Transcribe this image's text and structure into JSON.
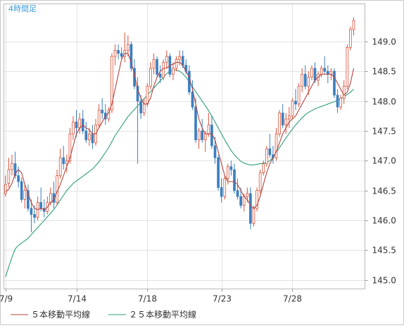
{
  "chart_data": {
    "type": "candlestick",
    "period_label": "4時間足",
    "x_tick_labels": [
      "7/9",
      "7/14",
      "7/18",
      "7/23",
      "7/28"
    ],
    "x_tick_index": [
      0,
      22,
      44,
      67,
      89
    ],
    "y_ticks": [
      145.0,
      145.5,
      146.0,
      146.5,
      147.0,
      147.5,
      148.0,
      148.5,
      149.0
    ],
    "y_tick_labels": [
      "145.0",
      "145.5",
      "146.0",
      "146.5",
      "147.0",
      "147.5",
      "148.0",
      "148.5",
      "149.0"
    ],
    "ylim": [
      144.85,
      149.63
    ],
    "xlim": [
      -0.5,
      111.5
    ],
    "legend": [
      {
        "label": "５本移動平均線",
        "color": "#b5453f"
      },
      {
        "label": "２５本移動平均線",
        "color": "#2f9e7e"
      }
    ],
    "colors": {
      "up": "#d9533a",
      "down": "#3a7fc1",
      "grid": "#e3e3e3",
      "frame": "#b9b9b9"
    },
    "candles": [
      [
        146.45,
        146.75,
        146.4,
        146.6
      ],
      [
        146.62,
        147.05,
        146.55,
        146.85
      ],
      [
        146.85,
        147.1,
        146.75,
        146.95
      ],
      [
        146.95,
        147.15,
        146.7,
        146.75
      ],
      [
        146.75,
        146.9,
        146.55,
        146.65
      ],
      [
        146.65,
        146.72,
        146.3,
        146.35
      ],
      [
        146.35,
        146.6,
        146.2,
        146.5
      ],
      [
        146.5,
        146.6,
        146.15,
        146.2
      ],
      [
        146.2,
        146.35,
        145.8,
        146.1
      ],
      [
        146.1,
        146.25,
        145.95,
        146.05
      ],
      [
        146.05,
        146.4,
        146.0,
        146.3
      ],
      [
        146.3,
        146.55,
        146.15,
        146.2
      ],
      [
        146.2,
        146.35,
        146.05,
        146.15
      ],
      [
        146.15,
        146.4,
        146.1,
        146.3
      ],
      [
        146.3,
        146.55,
        146.25,
        146.45
      ],
      [
        146.45,
        146.65,
        146.2,
        146.3
      ],
      [
        146.3,
        146.85,
        146.25,
        146.75
      ],
      [
        146.75,
        147.2,
        146.7,
        147.05
      ],
      [
        147.05,
        147.25,
        146.85,
        146.95
      ],
      [
        146.95,
        147.1,
        146.8,
        147.0
      ],
      [
        147.0,
        147.55,
        146.95,
        147.45
      ],
      [
        147.45,
        147.75,
        147.35,
        147.65
      ],
      [
        147.65,
        147.85,
        147.4,
        147.55
      ],
      [
        147.55,
        147.8,
        147.45,
        147.7
      ],
      [
        147.7,
        147.85,
        147.45,
        147.5
      ],
      [
        147.5,
        147.65,
        147.3,
        147.35
      ],
      [
        147.35,
        147.55,
        147.25,
        147.45
      ],
      [
        147.45,
        147.6,
        147.2,
        147.3
      ],
      [
        147.3,
        147.7,
        147.25,
        147.6
      ],
      [
        147.6,
        147.95,
        147.55,
        147.85
      ],
      [
        147.85,
        148.05,
        147.7,
        147.8
      ],
      [
        147.8,
        147.95,
        147.6,
        147.7
      ],
      [
        147.7,
        147.9,
        147.65,
        147.85
      ],
      [
        147.85,
        148.8,
        147.8,
        148.75
      ],
      [
        148.75,
        148.95,
        148.6,
        148.85
      ],
      [
        148.85,
        148.95,
        148.7,
        148.8
      ],
      [
        148.8,
        148.9,
        148.7,
        148.75
      ],
      [
        148.75,
        149.15,
        148.65,
        148.85
      ],
      [
        148.85,
        149.1,
        148.75,
        148.95
      ],
      [
        148.95,
        149.0,
        148.5,
        148.55
      ],
      [
        148.55,
        148.7,
        148.2,
        148.25
      ],
      [
        148.25,
        148.4,
        146.95,
        148.0
      ],
      [
        148.0,
        148.1,
        147.7,
        147.8
      ],
      [
        147.8,
        148.05,
        147.75,
        147.95
      ],
      [
        147.95,
        148.3,
        147.9,
        148.25
      ],
      [
        148.25,
        148.65,
        148.2,
        148.55
      ],
      [
        148.55,
        148.8,
        148.45,
        148.7
      ],
      [
        148.7,
        148.75,
        148.4,
        148.45
      ],
      [
        148.45,
        148.6,
        148.3,
        148.4
      ],
      [
        148.4,
        148.7,
        148.35,
        148.65
      ],
      [
        148.65,
        148.85,
        148.55,
        148.75
      ],
      [
        148.75,
        148.8,
        148.4,
        148.45
      ],
      [
        148.45,
        148.65,
        148.35,
        148.55
      ],
      [
        148.55,
        148.75,
        148.5,
        148.7
      ],
      [
        148.7,
        148.85,
        148.6,
        148.75
      ],
      [
        148.75,
        148.85,
        148.55,
        148.6
      ],
      [
        148.6,
        148.7,
        148.45,
        148.5
      ],
      [
        148.5,
        148.6,
        148.1,
        148.15
      ],
      [
        148.15,
        148.35,
        147.85,
        147.9
      ],
      [
        147.9,
        148.05,
        147.3,
        147.35
      ],
      [
        147.35,
        147.55,
        147.2,
        147.5
      ],
      [
        147.5,
        147.7,
        147.3,
        147.35
      ],
      [
        147.35,
        147.5,
        147.15,
        147.45
      ],
      [
        147.45,
        147.8,
        147.4,
        147.6
      ],
      [
        147.6,
        147.75,
        147.2,
        147.25
      ],
      [
        147.25,
        147.4,
        146.95,
        147.05
      ],
      [
        147.05,
        147.1,
        146.5,
        146.55
      ],
      [
        146.55,
        146.7,
        146.3,
        146.4
      ],
      [
        146.4,
        146.75,
        146.35,
        146.7
      ],
      [
        146.7,
        146.95,
        146.6,
        146.9
      ],
      [
        146.9,
        147.0,
        146.75,
        146.85
      ],
      [
        146.85,
        146.95,
        146.45,
        146.5
      ],
      [
        146.5,
        146.7,
        146.35,
        146.4
      ],
      [
        146.4,
        146.55,
        146.2,
        146.25
      ],
      [
        146.25,
        146.45,
        146.15,
        146.4
      ],
      [
        146.4,
        146.55,
        146.3,
        146.45
      ],
      [
        146.45,
        146.55,
        145.85,
        145.95
      ],
      [
        145.95,
        146.25,
        145.9,
        146.2
      ],
      [
        146.2,
        146.55,
        146.15,
        146.5
      ],
      [
        146.5,
        146.85,
        146.45,
        146.8
      ],
      [
        146.8,
        147.0,
        146.75,
        146.95
      ],
      [
        146.95,
        147.25,
        146.9,
        147.2
      ],
      [
        147.2,
        147.45,
        147.05,
        147.1
      ],
      [
        147.1,
        147.25,
        146.95,
        147.05
      ],
      [
        147.05,
        147.55,
        147.0,
        147.45
      ],
      [
        147.45,
        147.85,
        147.4,
        147.8
      ],
      [
        147.8,
        147.95,
        147.55,
        147.6
      ],
      [
        147.6,
        147.8,
        147.45,
        147.7
      ],
      [
        147.7,
        147.9,
        147.55,
        147.75
      ],
      [
        147.75,
        148.05,
        147.7,
        148.0
      ],
      [
        148.0,
        148.2,
        147.85,
        147.95
      ],
      [
        147.95,
        148.3,
        147.9,
        148.25
      ],
      [
        148.25,
        148.55,
        148.15,
        148.45
      ],
      [
        148.45,
        148.6,
        148.2,
        148.25
      ],
      [
        148.25,
        148.5,
        148.1,
        148.4
      ],
      [
        148.4,
        148.6,
        148.35,
        148.55
      ],
      [
        148.55,
        148.65,
        148.3,
        148.35
      ],
      [
        148.35,
        148.5,
        148.25,
        148.45
      ],
      [
        148.45,
        148.6,
        148.4,
        148.55
      ],
      [
        148.55,
        148.75,
        148.45,
        148.5
      ],
      [
        148.5,
        148.6,
        148.3,
        148.45
      ],
      [
        148.45,
        148.55,
        148.35,
        148.5
      ],
      [
        148.5,
        148.55,
        148.05,
        148.1
      ],
      [
        148.1,
        148.2,
        147.8,
        147.9
      ],
      [
        147.9,
        148.1,
        147.85,
        148.05
      ],
      [
        148.05,
        148.35,
        147.95,
        148.25
      ],
      [
        148.25,
        148.95,
        148.2,
        148.9
      ],
      [
        148.9,
        149.25,
        148.85,
        149.2
      ],
      [
        149.2,
        149.4,
        149.1,
        149.35
      ]
    ],
    "ma5": [
      146.48,
      146.52,
      146.62,
      146.78,
      146.85,
      146.8,
      146.6,
      146.45,
      146.3,
      146.2,
      146.18,
      146.2,
      146.18,
      146.22,
      146.3,
      146.35,
      146.48,
      146.6,
      146.75,
      146.9,
      147.05,
      147.25,
      147.45,
      147.55,
      147.6,
      147.55,
      147.52,
      147.45,
      147.45,
      147.55,
      147.65,
      147.75,
      147.8,
      147.95,
      148.2,
      148.45,
      148.7,
      148.8,
      148.8,
      148.65,
      148.45,
      148.2,
      148.05,
      147.95,
      147.95,
      148.05,
      148.25,
      148.4,
      148.5,
      148.55,
      148.55,
      148.6,
      148.62,
      148.65,
      148.65,
      148.6,
      148.5,
      148.4,
      148.2,
      147.95,
      147.7,
      147.55,
      147.45,
      147.45,
      147.45,
      147.35,
      147.15,
      146.95,
      146.75,
      146.65,
      146.65,
      146.65,
      146.6,
      146.5,
      146.4,
      146.35,
      146.25,
      146.2,
      146.25,
      146.4,
      146.6,
      146.8,
      146.95,
      147.05,
      147.15,
      147.3,
      147.45,
      147.55,
      147.65,
      147.7,
      147.75,
      147.85,
      147.95,
      148.05,
      148.15,
      148.25,
      148.35,
      148.4,
      148.45,
      148.45,
      148.45,
      148.45,
      148.4,
      148.3,
      148.2,
      148.1,
      148.15,
      148.3,
      148.55
    ],
    "ma25": [
      145.05,
      145.22,
      145.38,
      145.52,
      145.58,
      145.62,
      145.66,
      145.7,
      145.76,
      145.82,
      145.88,
      145.94,
      146.0,
      146.06,
      146.12,
      146.18,
      146.26,
      146.34,
      146.42,
      146.5,
      146.56,
      146.62,
      146.66,
      146.7,
      146.74,
      146.78,
      146.82,
      146.86,
      146.92,
      146.98,
      147.06,
      147.14,
      147.22,
      147.32,
      147.42,
      147.5,
      147.58,
      147.66,
      147.74,
      147.8,
      147.86,
      147.92,
      147.98,
      148.04,
      148.1,
      148.16,
      148.22,
      148.28,
      148.34,
      148.4,
      148.46,
      148.5,
      148.52,
      148.52,
      148.5,
      148.46,
      148.4,
      148.32,
      148.24,
      148.16,
      148.08,
      148.0,
      147.92,
      147.84,
      147.75,
      147.65,
      147.55,
      147.45,
      147.35,
      147.26,
      147.17,
      147.1,
      147.04,
      146.99,
      146.96,
      146.94,
      146.93,
      146.93,
      146.94,
      146.95,
      146.96,
      146.97,
      147.0,
      147.06,
      147.14,
      147.22,
      147.3,
      147.38,
      147.46,
      147.53,
      147.6,
      147.66,
      147.72,
      147.77,
      147.81,
      147.84,
      147.87,
      147.89,
      147.91,
      147.93,
      147.95,
      147.97,
      147.99,
      148.01,
      148.04,
      148.07,
      148.11,
      148.15,
      148.2
    ]
  }
}
